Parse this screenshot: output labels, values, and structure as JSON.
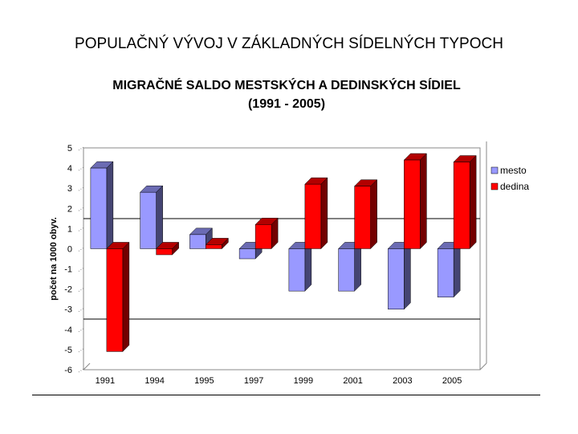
{
  "page": {
    "title": "POPULAČNÝ VÝVOJ V ZÁKLADNÝCH SÍDELNÝCH TYPOCH"
  },
  "chart_data": {
    "type": "bar",
    "title": "MIGRAČNÉ SALDO MESTSKÝCH A DEDINSKÝCH SÍDIEL",
    "subtitle": "(1991 - 2005)",
    "xlabel": "",
    "ylabel": "počet na 1000 obyv.",
    "ylim": [
      -6,
      5
    ],
    "yticks": [
      "5",
      "4",
      "3",
      "2",
      "1",
      "0",
      "-1",
      "-2",
      "-3",
      "-4",
      "-5",
      "-6"
    ],
    "grid": false,
    "three_d": true,
    "legend": "right",
    "categories": [
      "1991",
      "1994",
      "1995",
      "1997",
      "1999",
      "2001",
      "2003",
      "2005"
    ],
    "series": [
      {
        "name": "mesto",
        "color": "#9999ff",
        "values": [
          4.0,
          2.8,
          0.7,
          -0.5,
          -2.1,
          -2.1,
          -3.0,
          -2.4
        ]
      },
      {
        "name": "dedina",
        "color": "#ff0000",
        "values": [
          -5.1,
          -0.3,
          0.2,
          1.2,
          3.2,
          3.1,
          4.4,
          4.3
        ]
      }
    ]
  }
}
